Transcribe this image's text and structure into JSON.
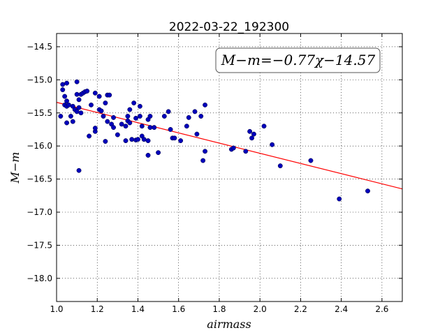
{
  "chart_data": {
    "type": "scatter",
    "title": "2022-03-22_192300",
    "xlabel": "airmass",
    "ylabel": "M−m",
    "xlim": [
      1.0,
      2.7
    ],
    "ylim": [
      -14.3,
      -18.35
    ],
    "y_axis_inverted": true,
    "grid": true,
    "xticks": [
      "1.0",
      "1.2",
      "1.4",
      "1.6",
      "1.8",
      "2.0",
      "2.2",
      "2.4",
      "2.6"
    ],
    "yticks": [
      "−14.5",
      "−15.0",
      "−15.5",
      "−16.0",
      "−16.5",
      "−17.0",
      "−17.5",
      "−18.0"
    ],
    "annotation": "M−m=−0.77χ−14.57",
    "fit": {
      "slope": -0.77,
      "intercept": -14.57,
      "color": "#ff0000"
    },
    "point_color": "#0000bb",
    "points": [
      [
        1.02,
        -15.55
      ],
      [
        1.03,
        -15.07
      ],
      [
        1.03,
        -15.15
      ],
      [
        1.04,
        -15.38
      ],
      [
        1.04,
        -15.25
      ],
      [
        1.05,
        -15.05
      ],
      [
        1.05,
        -15.32
      ],
      [
        1.05,
        -15.4
      ],
      [
        1.06,
        -15.38
      ],
      [
        1.05,
        -15.65
      ],
      [
        1.07,
        -15.55
      ],
      [
        1.08,
        -15.4
      ],
      [
        1.08,
        -15.63
      ],
      [
        1.09,
        -15.45
      ],
      [
        1.1,
        -15.03
      ],
      [
        1.1,
        -15.22
      ],
      [
        1.1,
        -15.48
      ],
      [
        1.11,
        -15.3
      ],
      [
        1.11,
        -15.42
      ],
      [
        1.12,
        -15.5
      ],
      [
        1.11,
        -16.37
      ],
      [
        1.12,
        -15.22
      ],
      [
        1.13,
        -15.2
      ],
      [
        1.14,
        -15.18
      ],
      [
        1.15,
        -15.17
      ],
      [
        1.16,
        -15.85
      ],
      [
        1.17,
        -15.38
      ],
      [
        1.19,
        -15.2
      ],
      [
        1.19,
        -15.78
      ],
      [
        1.19,
        -15.73
      ],
      [
        1.21,
        -15.25
      ],
      [
        1.21,
        -15.45
      ],
      [
        1.22,
        -15.47
      ],
      [
        1.23,
        -15.55
      ],
      [
        1.24,
        -15.35
      ],
      [
        1.24,
        -15.93
      ],
      [
        1.25,
        -15.23
      ],
      [
        1.25,
        -15.63
      ],
      [
        1.26,
        -15.23
      ],
      [
        1.27,
        -15.67
      ],
      [
        1.28,
        -15.72
      ],
      [
        1.28,
        -15.57
      ],
      [
        1.3,
        -15.83
      ],
      [
        1.32,
        -15.67
      ],
      [
        1.34,
        -15.7
      ],
      [
        1.34,
        -15.92
      ],
      [
        1.35,
        -15.55
      ],
      [
        1.35,
        -15.62
      ],
      [
        1.36,
        -15.45
      ],
      [
        1.36,
        -15.65
      ],
      [
        1.37,
        -15.9
      ],
      [
        1.38,
        -15.35
      ],
      [
        1.39,
        -15.58
      ],
      [
        1.39,
        -15.91
      ],
      [
        1.4,
        -15.9
      ],
      [
        1.41,
        -15.4
      ],
      [
        1.41,
        -15.55
      ],
      [
        1.42,
        -15.7
      ],
      [
        1.42,
        -15.85
      ],
      [
        1.43,
        -15.9
      ],
      [
        1.45,
        -15.6
      ],
      [
        1.45,
        -16.14
      ],
      [
        1.45,
        -15.92
      ],
      [
        1.46,
        -15.55
      ],
      [
        1.46,
        -15.72
      ],
      [
        1.48,
        -15.72
      ],
      [
        1.5,
        -16.1
      ],
      [
        1.53,
        -15.55
      ],
      [
        1.55,
        -15.48
      ],
      [
        1.56,
        -15.75
      ],
      [
        1.57,
        -15.88
      ],
      [
        1.58,
        -15.88
      ],
      [
        1.61,
        -15.92
      ],
      [
        1.64,
        -15.7
      ],
      [
        1.65,
        -15.57
      ],
      [
        1.68,
        -15.48
      ],
      [
        1.69,
        -15.82
      ],
      [
        1.71,
        -15.55
      ],
      [
        1.72,
        -16.22
      ],
      [
        1.73,
        -15.38
      ],
      [
        1.73,
        -16.08
      ],
      [
        1.86,
        -16.05
      ],
      [
        1.87,
        -16.03
      ],
      [
        1.93,
        -16.08
      ],
      [
        1.95,
        -15.78
      ],
      [
        1.96,
        -15.88
      ],
      [
        1.97,
        -15.82
      ],
      [
        2.02,
        -15.7
      ],
      [
        2.06,
        -15.98
      ],
      [
        2.1,
        -16.3
      ],
      [
        2.25,
        -16.22
      ],
      [
        2.39,
        -16.8
      ],
      [
        2.53,
        -16.68
      ]
    ]
  }
}
